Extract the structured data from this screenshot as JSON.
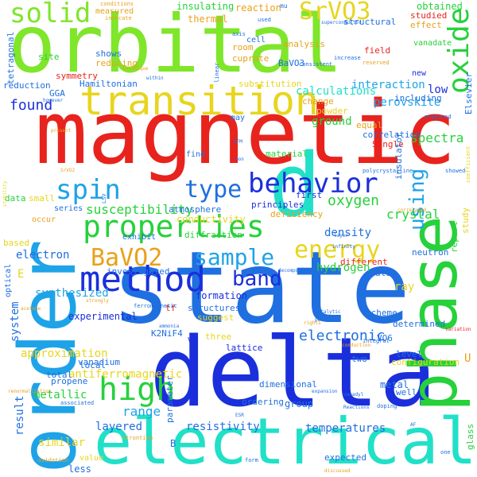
{
  "colors": {
    "background": "#ffffff",
    "red": "#e8231d",
    "blue": "#1a2fdb",
    "royal": "#1f6fe0",
    "sky": "#1ea3e8",
    "teal": "#21e0c8",
    "green": "#26d13a",
    "lime": "#7fe62a",
    "yellow": "#e7d51e",
    "gold": "#e8a11a",
    "orange": "#e86a1a"
  },
  "words": {
    "magnetic": "magnetic",
    "state": "state",
    "delta": "delta",
    "orbital": "orbital",
    "order": "order",
    "phase": "phase",
    "electrical": "electrical",
    "transition": "transition",
    "d": "d",
    "properties": "properties",
    "method": "method",
    "behavior": "behavior",
    "high": "high",
    "srvo3": "SrVO3",
    "bavo2": "BaVO2",
    "solid": "solid",
    "oxide": "oxide",
    "spin": "spin",
    "type": "type",
    "energy": "energy",
    "using": "using",
    "sample": "sample",
    "band": "band",
    "found": "found",
    "susceptibility": "susceptibility",
    "electronic": "electronic",
    "oxygen": "oxygen",
    "range": "range",
    "spectra": "spectra",
    "crystal": "crystal",
    "calculations": "calculations",
    "interaction": "interaction",
    "perovskite": "perovskite",
    "resistivity": "resistivity",
    "metallic": "metallic",
    "result": "result",
    "layered": "layered",
    "temperatures": "temperatures",
    "system": "system",
    "conductivity": "conductivity",
    "electron": "electron",
    "hydrogen": "hydrogen",
    "density": "density",
    "antiferromagnetic": "antiferromagnetic",
    "synthesized": "synthesized",
    "approximation": "approximation",
    "experimental": "experimental",
    "formation": "formation",
    "insulating": "insulating",
    "thermal": "thermal",
    "reaction": "reaction",
    "obtained": "obtained",
    "studied": "studied",
    "effect": "effect",
    "measured": "measured",
    "shows": "shows",
    "reducing": "reducing",
    "symmetry": "symmetry",
    "hamiltonian": "Hamiltonian",
    "gga": "GGA",
    "reduction": "reduction",
    "tetragonal": "tetragonal",
    "site": "site",
    "analysis": "analysis",
    "room": "room",
    "cell": "cell",
    "field": "field",
    "structural": "structural",
    "new": "new",
    "vanadate": "vanadate",
    "low": "low",
    "including": "including",
    "cuprate": "cuprate",
    "bavo3": "BaVO3",
    "substitution": "substitution",
    "ground": "ground",
    "change": "change",
    "powder": "powder",
    "equal": "equal",
    "correlation": "correlation",
    "single": "Single",
    "insulator": "insulator",
    "material": "material",
    "atmosphere": "atmosphere",
    "deficiency": "deficiency",
    "first": "first",
    "principles": "principles",
    "diffraction": "diffraction",
    "different": "different",
    "neutron": "neutron",
    "ray": "ray",
    "also": "also",
    "data": "data",
    "small": "small",
    "based": "based",
    "investigated": "investigated",
    "structures": "structures",
    "suggest": "suggest",
    "scheme": "scheme",
    "determined": "determined",
    "level": "level",
    "configuration": "configuration",
    "two": "two",
    "metal": "metal",
    "well": "well",
    "group": "group",
    "ordering": "ordering",
    "dimensional": "dimensional",
    "lattice": "lattice",
    "three": "three",
    "vanadium": "vanadium",
    "local": "local",
    "total": "total",
    "propene": "propene",
    "parameter": "parameter",
    "similar": "similar",
    "less": "less",
    "value": "value",
    "expected": "expected",
    "k2nif4": "K2NiF4",
    "v4": "V4",
    "vo6": "VO6",
    "elsevier": "Elsevier",
    "report": "report",
    "study": "study",
    "glass": "glass",
    "exhibit": "exhibit",
    "series": "series",
    "occur": "occur",
    "may": "may",
    "find": "find",
    "e": "E",
    "b": "B",
    "u": "U",
    "tf": "tf",
    "optical": "optical",
    "conditions": "conditions",
    "indicate": "indicate",
    "used": "used",
    "mu": "mu",
    "axis": "axis",
    "consistent": "consistent",
    "increase": "increase",
    "reserved": "reserved",
    "superconductor": "superconductor",
    "linear": "linear",
    "however": "however",
    "present": "present",
    "prepared": "prepared",
    "afm": "AFM",
    "polycrystalline": "polycrystalline",
    "layer": "layer",
    "infinity": "infinity",
    "decomposition": "decomposition",
    "ferromagnetic": "ferromagnetic",
    "catalytic": "catalytic",
    "ammonia": "ammonia",
    "rights": "rights",
    "point": "point",
    "esr": "ESR",
    "doping": "doping",
    "reactions": "Reactions",
    "integral": "integral",
    "conduction": "conduction",
    "expansion": "expansion",
    "vanadyl": "vanadyl",
    "oxidation": "oxidation",
    "strontium": "strontium",
    "associated": "associated",
    "renormalization": "renormalization",
    "form": "form",
    "one": "one",
    "variation": "variation",
    "discussed": "discussed",
    "srvo2": "SrVO2",
    "lsv": "LSV",
    "acetone": "acetone",
    "strongly": "strongly",
    "show": "showed",
    "coefficient": "coefficient",
    "stability": "stability",
    "correlated": "correlated",
    "af": "AF",
    "technique": "technique",
    "within": "within",
    "mon": "mon"
  }
}
